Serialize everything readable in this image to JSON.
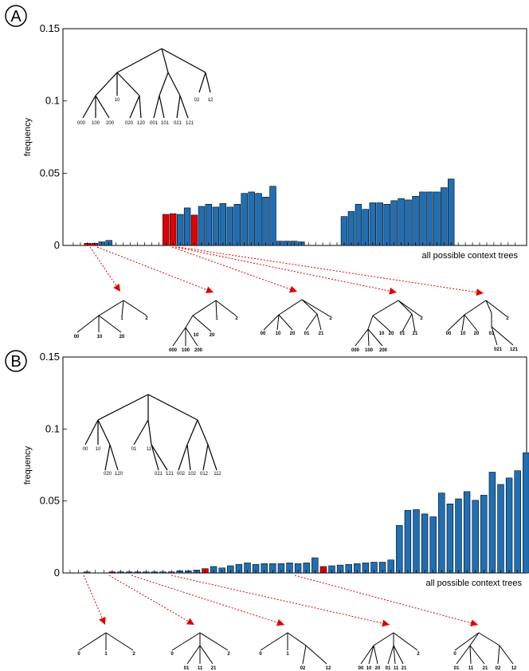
{
  "chart_data": [
    {
      "panel": "A",
      "type": "bar",
      "ylabel": "frequency",
      "xlabel": "all possible context trees",
      "ylim": [
        0,
        0.15
      ],
      "yticks": [
        "0",
        "0.05",
        "0.1",
        "0.15"
      ],
      "ytick_values": [
        0,
        0.05,
        0.1,
        0.15
      ],
      "n_slots": 65,
      "bars": [
        {
          "i": 2,
          "v": 0.0015,
          "c": "red"
        },
        {
          "i": 3,
          "v": 0.0015,
          "c": "red"
        },
        {
          "i": 4,
          "v": 0.0025,
          "c": "blue"
        },
        {
          "i": 5,
          "v": 0.0035,
          "c": "blue"
        },
        {
          "i": 13,
          "v": 0.0215,
          "c": "red"
        },
        {
          "i": 14,
          "v": 0.022,
          "c": "red"
        },
        {
          "i": 15,
          "v": 0.0215,
          "c": "blue"
        },
        {
          "i": 16,
          "v": 0.026,
          "c": "blue"
        },
        {
          "i": 17,
          "v": 0.021,
          "c": "red"
        },
        {
          "i": 18,
          "v": 0.027,
          "c": "blue"
        },
        {
          "i": 19,
          "v": 0.0285,
          "c": "blue"
        },
        {
          "i": 20,
          "v": 0.0265,
          "c": "blue"
        },
        {
          "i": 21,
          "v": 0.029,
          "c": "blue"
        },
        {
          "i": 22,
          "v": 0.0265,
          "c": "blue"
        },
        {
          "i": 23,
          "v": 0.0285,
          "c": "blue"
        },
        {
          "i": 24,
          "v": 0.036,
          "c": "blue"
        },
        {
          "i": 25,
          "v": 0.037,
          "c": "blue"
        },
        {
          "i": 26,
          "v": 0.036,
          "c": "blue"
        },
        {
          "i": 27,
          "v": 0.0335,
          "c": "blue"
        },
        {
          "i": 28,
          "v": 0.041,
          "c": "blue"
        },
        {
          "i": 29,
          "v": 0.003,
          "c": "blue"
        },
        {
          "i": 30,
          "v": 0.003,
          "c": "blue"
        },
        {
          "i": 31,
          "v": 0.003,
          "c": "blue"
        },
        {
          "i": 32,
          "v": 0.0025,
          "c": "blue"
        },
        {
          "i": 38,
          "v": 0.02,
          "c": "blue"
        },
        {
          "i": 39,
          "v": 0.0235,
          "c": "blue"
        },
        {
          "i": 40,
          "v": 0.0285,
          "c": "blue"
        },
        {
          "i": 41,
          "v": 0.025,
          "c": "blue"
        },
        {
          "i": 42,
          "v": 0.0295,
          "c": "blue"
        },
        {
          "i": 43,
          "v": 0.0295,
          "c": "blue"
        },
        {
          "i": 44,
          "v": 0.0285,
          "c": "blue"
        },
        {
          "i": 45,
          "v": 0.031,
          "c": "blue"
        },
        {
          "i": 46,
          "v": 0.0325,
          "c": "blue"
        },
        {
          "i": 47,
          "v": 0.0315,
          "c": "blue"
        },
        {
          "i": 48,
          "v": 0.034,
          "c": "blue"
        },
        {
          "i": 49,
          "v": 0.037,
          "c": "blue"
        },
        {
          "i": 50,
          "v": 0.037,
          "c": "blue"
        },
        {
          "i": 51,
          "v": 0.037,
          "c": "blue"
        },
        {
          "i": 52,
          "v": 0.04,
          "c": "blue"
        },
        {
          "i": 53,
          "v": 0.046,
          "c": "blue"
        }
      ],
      "colors": {
        "blue": "#1f6fb5",
        "red": "#e00000"
      }
    },
    {
      "panel": "B",
      "type": "bar",
      "ylabel": "frequency",
      "xlabel": "all possible context trees",
      "ylim": [
        0,
        0.15
      ],
      "yticks": [
        "0",
        "0.05",
        "0.1",
        "0.15"
      ],
      "ytick_values": [
        0,
        0.05,
        0.1,
        0.15
      ],
      "n_slots": 65,
      "bars": [
        {
          "i": 2,
          "v": 0.0008,
          "c": "blue"
        },
        {
          "i": 5,
          "v": 0.0008,
          "c": "red"
        },
        {
          "i": 6,
          "v": 0.0008,
          "c": "blue"
        },
        {
          "i": 7,
          "v": 0.0008,
          "c": "blue"
        },
        {
          "i": 8,
          "v": 0.0008,
          "c": "blue"
        },
        {
          "i": 9,
          "v": 0.0008,
          "c": "blue"
        },
        {
          "i": 10,
          "v": 0.0008,
          "c": "blue"
        },
        {
          "i": 11,
          "v": 0.0008,
          "c": "blue"
        },
        {
          "i": 12,
          "v": 0.0008,
          "c": "blue"
        },
        {
          "i": 13,
          "v": 0.0015,
          "c": "blue"
        },
        {
          "i": 14,
          "v": 0.0015,
          "c": "blue"
        },
        {
          "i": 15,
          "v": 0.002,
          "c": "blue"
        },
        {
          "i": 16,
          "v": 0.003,
          "c": "red"
        },
        {
          "i": 17,
          "v": 0.0045,
          "c": "blue"
        },
        {
          "i": 18,
          "v": 0.0035,
          "c": "blue"
        },
        {
          "i": 19,
          "v": 0.005,
          "c": "blue"
        },
        {
          "i": 20,
          "v": 0.006,
          "c": "blue"
        },
        {
          "i": 21,
          "v": 0.007,
          "c": "blue"
        },
        {
          "i": 22,
          "v": 0.006,
          "c": "blue"
        },
        {
          "i": 23,
          "v": 0.0065,
          "c": "blue"
        },
        {
          "i": 24,
          "v": 0.0065,
          "c": "blue"
        },
        {
          "i": 25,
          "v": 0.0065,
          "c": "blue"
        },
        {
          "i": 26,
          "v": 0.007,
          "c": "blue"
        },
        {
          "i": 27,
          "v": 0.0065,
          "c": "blue"
        },
        {
          "i": 28,
          "v": 0.007,
          "c": "blue"
        },
        {
          "i": 29,
          "v": 0.0105,
          "c": "blue"
        },
        {
          "i": 30,
          "v": 0.0045,
          "c": "red"
        },
        {
          "i": 31,
          "v": 0.005,
          "c": "blue"
        },
        {
          "i": 32,
          "v": 0.0055,
          "c": "blue"
        },
        {
          "i": 33,
          "v": 0.006,
          "c": "blue"
        },
        {
          "i": 34,
          "v": 0.0065,
          "c": "blue"
        },
        {
          "i": 35,
          "v": 0.007,
          "c": "blue"
        },
        {
          "i": 36,
          "v": 0.0075,
          "c": "blue"
        },
        {
          "i": 37,
          "v": 0.0075,
          "c": "blue"
        },
        {
          "i": 38,
          "v": 0.009,
          "c": "blue"
        },
        {
          "i": 39,
          "v": 0.033,
          "c": "blue"
        },
        {
          "i": 40,
          "v": 0.0435,
          "c": "blue"
        },
        {
          "i": 41,
          "v": 0.044,
          "c": "blue"
        },
        {
          "i": 42,
          "v": 0.041,
          "c": "blue"
        },
        {
          "i": 43,
          "v": 0.039,
          "c": "blue"
        },
        {
          "i": 44,
          "v": 0.0555,
          "c": "blue"
        },
        {
          "i": 45,
          "v": 0.048,
          "c": "blue"
        },
        {
          "i": 46,
          "v": 0.0515,
          "c": "blue"
        },
        {
          "i": 47,
          "v": 0.0565,
          "c": "blue"
        },
        {
          "i": 48,
          "v": 0.0505,
          "c": "blue"
        },
        {
          "i": 49,
          "v": 0.054,
          "c": "blue"
        },
        {
          "i": 50,
          "v": 0.07,
          "c": "blue"
        },
        {
          "i": 51,
          "v": 0.0615,
          "c": "blue"
        },
        {
          "i": 52,
          "v": 0.066,
          "c": "blue"
        },
        {
          "i": 53,
          "v": 0.071,
          "c": "blue"
        },
        {
          "i": 54,
          "v": 0.0835,
          "c": "blue"
        }
      ],
      "colors": {
        "blue": "#1f6fb5",
        "red": "#e00000"
      }
    }
  ],
  "panels": {
    "a": {
      "letter": "A"
    },
    "b": {
      "letter": "B"
    }
  },
  "arrow_color": "#e00000",
  "insets": {
    "a": {
      "leaves": [
        "000",
        "100",
        "200",
        "10",
        "020",
        "120",
        "001",
        "101",
        "021",
        "121",
        "02",
        "12"
      ]
    },
    "b": {
      "leaves": [
        "00",
        "10",
        "020",
        "120",
        "01",
        "11",
        "021",
        "121",
        "002",
        "102",
        "012",
        "112"
      ]
    }
  },
  "trees_a": [
    {
      "leaves": [
        "00",
        "10",
        "20",
        "1",
        "2"
      ]
    },
    {
      "leaves": [
        "000",
        "100",
        "200",
        "10",
        "20",
        "1",
        "2"
      ]
    },
    {
      "leaves": [
        "00",
        "10",
        "20",
        "01",
        "21",
        "2"
      ]
    },
    {
      "leaves": [
        "000",
        "100",
        "200",
        "10",
        "20",
        "01",
        "21",
        "2"
      ]
    },
    {
      "leaves": [
        "00",
        "10",
        "20",
        "01",
        "021",
        "121",
        "2"
      ]
    }
  ],
  "trees_b": [
    {
      "leaves": [
        "0",
        "1",
        "2"
      ]
    },
    {
      "leaves": [
        "0",
        "01",
        "11",
        "21",
        "2"
      ]
    },
    {
      "leaves": [
        "0",
        "1",
        "02",
        "12"
      ]
    },
    {
      "leaves": [
        "00",
        "10",
        "20",
        "01",
        "11",
        "21",
        "2"
      ]
    },
    {
      "leaves": [
        "0",
        "01",
        "11",
        "21",
        "02",
        "12"
      ]
    }
  ]
}
